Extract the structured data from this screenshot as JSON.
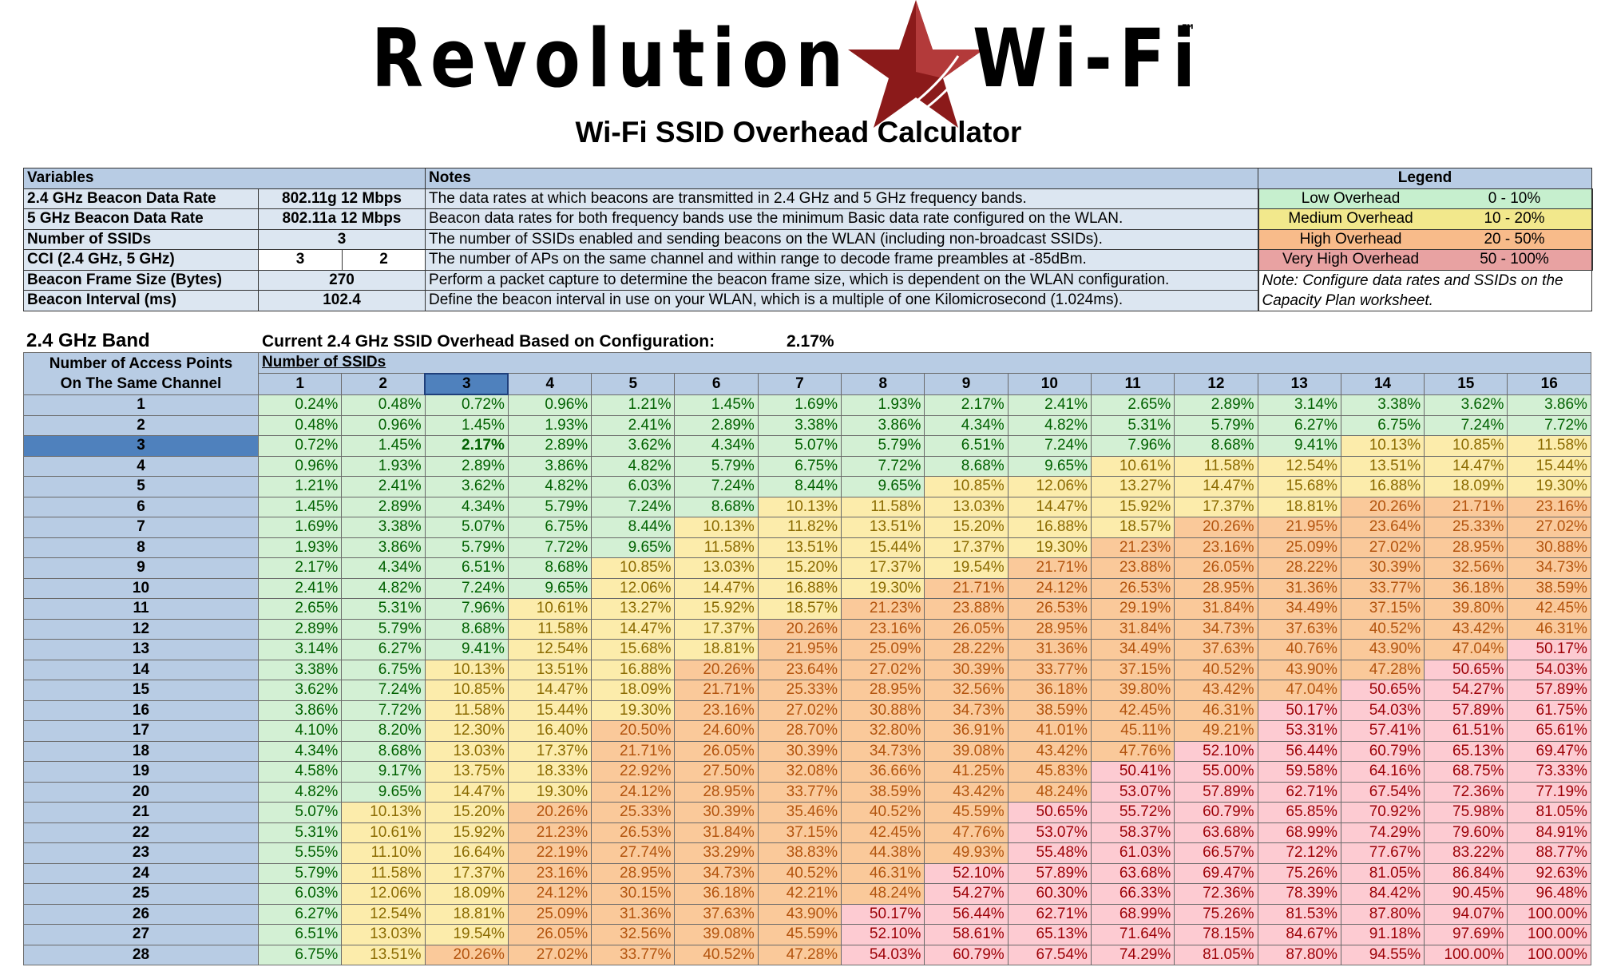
{
  "header": {
    "logo_left": "Revolution",
    "logo_right": "Wi-Fi",
    "trademark": "™",
    "title": "Wi-Fi SSID Overhead Calculator"
  },
  "variables": {
    "heading": "Variables",
    "rows": [
      [
        "2.4 GHz Beacon Data Rate",
        "802.11g 12 Mbps"
      ],
      [
        "5 GHz Beacon Data Rate",
        "802.11a 12 Mbps"
      ],
      [
        "Number of SSIDs",
        "3"
      ],
      [
        "CCI (2.4 GHz, 5 GHz)",
        "3",
        "2"
      ],
      [
        "Beacon Frame Size (Bytes)",
        "270"
      ],
      [
        "Beacon Interval (ms)",
        "102.4"
      ]
    ]
  },
  "notes": {
    "heading": "Notes",
    "rows": [
      "The data rates at which beacons are transmitted in 2.4 GHz and 5 GHz frequency bands.",
      "Beacon data rates for both frequency bands use the minimum Basic data rate configured on the WLAN.",
      "The number of SSIDs enabled and sending beacons on the WLAN (including non-broadcast SSIDs).",
      "The number of APs on the same channel and within range to decode frame preambles at -85dBm.",
      "Perform a packet capture to determine the beacon frame size, which is dependent on the WLAN configuration.",
      "Define the beacon interval in use on your WLAN, which is a multiple of one Kilomicrosecond (1.024ms)."
    ]
  },
  "legend": {
    "heading": "Legend",
    "items": [
      {
        "label": "Low Overhead",
        "range": "0 - 10%",
        "color": "#c6efce",
        "cell_color": "#d3f0d4",
        "text_color": "#006100"
      },
      {
        "label": "Medium Overhead",
        "range": "10 - 20%",
        "color": "#f2e88c",
        "cell_color": "#fcecab",
        "text_color": "#8a6a00"
      },
      {
        "label": "High Overhead",
        "range": "20 - 50%",
        "color": "#f8bb8a",
        "cell_color": "#fac99a",
        "text_color": "#b3540e"
      },
      {
        "label": "Very High Overhead",
        "range": "50 - 100%",
        "color": "#e8a2a2",
        "cell_color": "#fdcbd2",
        "text_color": "#9c0006"
      }
    ],
    "note": "Note: Configure data rates and SSIDs on the Capacity Plan worksheet."
  },
  "band": {
    "title": "2.4 GHz Band",
    "current_label": "Current 2.4 GHz SSID Overhead Based on Configuration:",
    "current_value": "2.17%",
    "row_header": "Number of Access Points On The Same Channel",
    "col_header": "Number of SSIDs",
    "columns": [
      "1",
      "2",
      "3",
      "4",
      "5",
      "6",
      "7",
      "8",
      "9",
      "10",
      "11",
      "12",
      "13",
      "14",
      "15",
      "16"
    ],
    "rows": [
      {
        "label": "1",
        "cells": [
          "0.24%",
          "0.48%",
          "0.72%",
          "0.96%",
          "1.21%",
          "1.45%",
          "1.69%",
          "1.93%",
          "2.17%",
          "2.41%",
          "2.65%",
          "2.89%",
          "3.14%",
          "3.38%",
          "3.62%",
          "3.86%"
        ]
      },
      {
        "label": "2",
        "cells": [
          "0.48%",
          "0.96%",
          "1.45%",
          "1.93%",
          "2.41%",
          "2.89%",
          "3.38%",
          "3.86%",
          "4.34%",
          "4.82%",
          "5.31%",
          "5.79%",
          "6.27%",
          "6.75%",
          "7.24%",
          "7.72%"
        ]
      },
      {
        "label": "3",
        "cells": [
          "0.72%",
          "1.45%",
          "2.17%",
          "2.89%",
          "3.62%",
          "4.34%",
          "5.07%",
          "5.79%",
          "6.51%",
          "7.24%",
          "7.96%",
          "8.68%",
          "9.41%",
          "10.13%",
          "10.85%",
          "11.58%"
        ]
      },
      {
        "label": "4",
        "cells": [
          "0.96%",
          "1.93%",
          "2.89%",
          "3.86%",
          "4.82%",
          "5.79%",
          "6.75%",
          "7.72%",
          "8.68%",
          "9.65%",
          "10.61%",
          "11.58%",
          "12.54%",
          "13.51%",
          "14.47%",
          "15.44%"
        ]
      },
      {
        "label": "5",
        "cells": [
          "1.21%",
          "2.41%",
          "3.62%",
          "4.82%",
          "6.03%",
          "7.24%",
          "8.44%",
          "9.65%",
          "10.85%",
          "12.06%",
          "13.27%",
          "14.47%",
          "15.68%",
          "16.88%",
          "18.09%",
          "19.30%"
        ]
      },
      {
        "label": "6",
        "cells": [
          "1.45%",
          "2.89%",
          "4.34%",
          "5.79%",
          "7.24%",
          "8.68%",
          "10.13%",
          "11.58%",
          "13.03%",
          "14.47%",
          "15.92%",
          "17.37%",
          "18.81%",
          "20.26%",
          "21.71%",
          "23.16%"
        ]
      },
      {
        "label": "7",
        "cells": [
          "1.69%",
          "3.38%",
          "5.07%",
          "6.75%",
          "8.44%",
          "10.13%",
          "11.82%",
          "13.51%",
          "15.20%",
          "16.88%",
          "18.57%",
          "20.26%",
          "21.95%",
          "23.64%",
          "25.33%",
          "27.02%"
        ]
      },
      {
        "label": "8",
        "cells": [
          "1.93%",
          "3.86%",
          "5.79%",
          "7.72%",
          "9.65%",
          "11.58%",
          "13.51%",
          "15.44%",
          "17.37%",
          "19.30%",
          "21.23%",
          "23.16%",
          "25.09%",
          "27.02%",
          "28.95%",
          "30.88%"
        ]
      },
      {
        "label": "9",
        "cells": [
          "2.17%",
          "4.34%",
          "6.51%",
          "8.68%",
          "10.85%",
          "13.03%",
          "15.20%",
          "17.37%",
          "19.54%",
          "21.71%",
          "23.88%",
          "26.05%",
          "28.22%",
          "30.39%",
          "32.56%",
          "34.73%"
        ]
      },
      {
        "label": "10",
        "cells": [
          "2.41%",
          "4.82%",
          "7.24%",
          "9.65%",
          "12.06%",
          "14.47%",
          "16.88%",
          "19.30%",
          "21.71%",
          "24.12%",
          "26.53%",
          "28.95%",
          "31.36%",
          "33.77%",
          "36.18%",
          "38.59%"
        ]
      },
      {
        "label": "11",
        "cells": [
          "2.65%",
          "5.31%",
          "7.96%",
          "10.61%",
          "13.27%",
          "15.92%",
          "18.57%",
          "21.23%",
          "23.88%",
          "26.53%",
          "29.19%",
          "31.84%",
          "34.49%",
          "37.15%",
          "39.80%",
          "42.45%"
        ]
      },
      {
        "label": "12",
        "cells": [
          "2.89%",
          "5.79%",
          "8.68%",
          "11.58%",
          "14.47%",
          "17.37%",
          "20.26%",
          "23.16%",
          "26.05%",
          "28.95%",
          "31.84%",
          "34.73%",
          "37.63%",
          "40.52%",
          "43.42%",
          "46.31%"
        ]
      },
      {
        "label": "13",
        "cells": [
          "3.14%",
          "6.27%",
          "9.41%",
          "12.54%",
          "15.68%",
          "18.81%",
          "21.95%",
          "25.09%",
          "28.22%",
          "31.36%",
          "34.49%",
          "37.63%",
          "40.76%",
          "43.90%",
          "47.04%",
          "50.17%"
        ]
      },
      {
        "label": "14",
        "cells": [
          "3.38%",
          "6.75%",
          "10.13%",
          "13.51%",
          "16.88%",
          "20.26%",
          "23.64%",
          "27.02%",
          "30.39%",
          "33.77%",
          "37.15%",
          "40.52%",
          "43.90%",
          "47.28%",
          "50.65%",
          "54.03%"
        ]
      },
      {
        "label": "15",
        "cells": [
          "3.62%",
          "7.24%",
          "10.85%",
          "14.47%",
          "18.09%",
          "21.71%",
          "25.33%",
          "28.95%",
          "32.56%",
          "36.18%",
          "39.80%",
          "43.42%",
          "47.04%",
          "50.65%",
          "54.27%",
          "57.89%"
        ]
      },
      {
        "label": "16",
        "cells": [
          "3.86%",
          "7.72%",
          "11.58%",
          "15.44%",
          "19.30%",
          "23.16%",
          "27.02%",
          "30.88%",
          "34.73%",
          "38.59%",
          "42.45%",
          "46.31%",
          "50.17%",
          "54.03%",
          "57.89%",
          "61.75%"
        ]
      },
      {
        "label": "17",
        "cells": [
          "4.10%",
          "8.20%",
          "12.30%",
          "16.40%",
          "20.50%",
          "24.60%",
          "28.70%",
          "32.80%",
          "36.91%",
          "41.01%",
          "45.11%",
          "49.21%",
          "53.31%",
          "57.41%",
          "61.51%",
          "65.61%"
        ]
      },
      {
        "label": "18",
        "cells": [
          "4.34%",
          "8.68%",
          "13.03%",
          "17.37%",
          "21.71%",
          "26.05%",
          "30.39%",
          "34.73%",
          "39.08%",
          "43.42%",
          "47.76%",
          "52.10%",
          "56.44%",
          "60.79%",
          "65.13%",
          "69.47%"
        ]
      },
      {
        "label": "19",
        "cells": [
          "4.58%",
          "9.17%",
          "13.75%",
          "18.33%",
          "22.92%",
          "27.50%",
          "32.08%",
          "36.66%",
          "41.25%",
          "45.83%",
          "50.41%",
          "55.00%",
          "59.58%",
          "64.16%",
          "68.75%",
          "73.33%"
        ]
      },
      {
        "label": "20",
        "cells": [
          "4.82%",
          "9.65%",
          "14.47%",
          "19.30%",
          "24.12%",
          "28.95%",
          "33.77%",
          "38.59%",
          "43.42%",
          "48.24%",
          "53.07%",
          "57.89%",
          "62.71%",
          "67.54%",
          "72.36%",
          "77.19%"
        ]
      },
      {
        "label": "21",
        "cells": [
          "5.07%",
          "10.13%",
          "15.20%",
          "20.26%",
          "25.33%",
          "30.39%",
          "35.46%",
          "40.52%",
          "45.59%",
          "50.65%",
          "55.72%",
          "60.79%",
          "65.85%",
          "70.92%",
          "75.98%",
          "81.05%"
        ]
      },
      {
        "label": "22",
        "cells": [
          "5.31%",
          "10.61%",
          "15.92%",
          "21.23%",
          "26.53%",
          "31.84%",
          "37.15%",
          "42.45%",
          "47.76%",
          "53.07%",
          "58.37%",
          "63.68%",
          "68.99%",
          "74.29%",
          "79.60%",
          "84.91%"
        ]
      },
      {
        "label": "23",
        "cells": [
          "5.55%",
          "11.10%",
          "16.64%",
          "22.19%",
          "27.74%",
          "33.29%",
          "38.83%",
          "44.38%",
          "49.93%",
          "55.48%",
          "61.03%",
          "66.57%",
          "72.12%",
          "77.67%",
          "83.22%",
          "88.77%"
        ]
      },
      {
        "label": "24",
        "cells": [
          "5.79%",
          "11.58%",
          "17.37%",
          "23.16%",
          "28.95%",
          "34.73%",
          "40.52%",
          "46.31%",
          "52.10%",
          "57.89%",
          "63.68%",
          "69.47%",
          "75.26%",
          "81.05%",
          "86.84%",
          "92.63%"
        ]
      },
      {
        "label": "25",
        "cells": [
          "6.03%",
          "12.06%",
          "18.09%",
          "24.12%",
          "30.15%",
          "36.18%",
          "42.21%",
          "48.24%",
          "54.27%",
          "60.30%",
          "66.33%",
          "72.36%",
          "78.39%",
          "84.42%",
          "90.45%",
          "96.48%"
        ]
      },
      {
        "label": "26",
        "cells": [
          "6.27%",
          "12.54%",
          "18.81%",
          "25.09%",
          "31.36%",
          "37.63%",
          "43.90%",
          "50.17%",
          "56.44%",
          "62.71%",
          "68.99%",
          "75.26%",
          "81.53%",
          "87.80%",
          "94.07%",
          "100.00%"
        ]
      },
      {
        "label": "27",
        "cells": [
          "6.51%",
          "13.03%",
          "19.54%",
          "26.05%",
          "32.56%",
          "39.08%",
          "45.59%",
          "52.10%",
          "58.61%",
          "65.13%",
          "71.64%",
          "78.15%",
          "84.67%",
          "91.18%",
          "97.69%",
          "100.00%"
        ]
      },
      {
        "label": "28",
        "cells": [
          "6.75%",
          "13.51%",
          "20.26%",
          "27.02%",
          "33.77%",
          "40.52%",
          "47.28%",
          "54.03%",
          "60.79%",
          "67.54%",
          "74.29%",
          "81.05%",
          "87.80%",
          "94.55%",
          "100.00%",
          "100.00%"
        ]
      }
    ]
  }
}
